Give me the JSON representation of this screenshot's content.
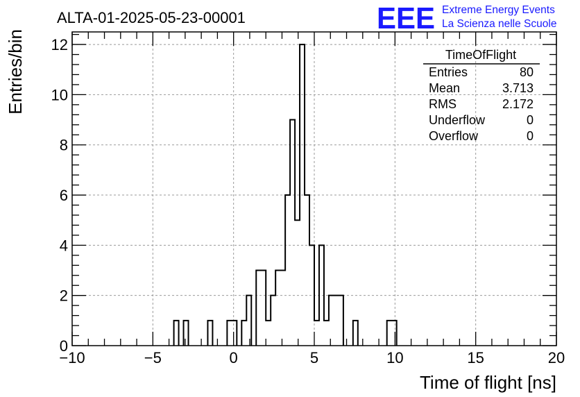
{
  "chart_data": {
    "type": "histogram",
    "title": "ALTA-01-2025-05-23-00001",
    "xlabel": "Time of flight [ns]",
    "ylabel": "Entries/bin",
    "xlim": [
      -10,
      20
    ],
    "ylim": [
      0,
      12.5
    ],
    "bin_width": 0.3,
    "grid": true,
    "x_ticks": [
      -10,
      -5,
      0,
      5,
      10,
      15,
      20
    ],
    "x_tick_labels": [
      "−10",
      "−5",
      "0",
      "5",
      "10",
      "15",
      "20"
    ],
    "y_ticks": [
      0,
      2,
      4,
      6,
      8,
      10,
      12
    ],
    "y_tick_labels": [
      "0",
      "2",
      "4",
      "6",
      "8",
      "10",
      "12"
    ],
    "bins": [
      {
        "low": -3.7,
        "count": 1
      },
      {
        "low": -3.1,
        "count": 1
      },
      {
        "low": -1.6,
        "count": 1
      },
      {
        "low": -0.4,
        "count": 1
      },
      {
        "low": -0.1,
        "count": 1
      },
      {
        "low": 0.5,
        "count": 1
      },
      {
        "low": 0.8,
        "count": 2
      },
      {
        "low": 1.4,
        "count": 3
      },
      {
        "low": 1.7,
        "count": 3
      },
      {
        "low": 2.0,
        "count": 1
      },
      {
        "low": 2.3,
        "count": 2
      },
      {
        "low": 2.6,
        "count": 3
      },
      {
        "low": 2.9,
        "count": 3
      },
      {
        "low": 3.2,
        "count": 6
      },
      {
        "low": 3.5,
        "count": 9
      },
      {
        "low": 3.8,
        "count": 5
      },
      {
        "low": 4.1,
        "count": 12
      },
      {
        "low": 4.4,
        "count": 6
      },
      {
        "low": 4.7,
        "count": 4
      },
      {
        "low": 5.0,
        "count": 1
      },
      {
        "low": 5.3,
        "count": 4
      },
      {
        "low": 5.6,
        "count": 1
      },
      {
        "low": 5.9,
        "count": 2
      },
      {
        "low": 6.2,
        "count": 2
      },
      {
        "low": 6.5,
        "count": 2
      },
      {
        "low": 7.4,
        "count": 1
      },
      {
        "low": 9.5,
        "count": 1
      },
      {
        "low": 9.8,
        "count": 1
      }
    ],
    "stats_box": {
      "title": "TimeOfFlight",
      "placement": "top-right",
      "rows": [
        {
          "label": "Entries",
          "value": "80"
        },
        {
          "label": "Mean",
          "value": "3.713"
        },
        {
          "label": "RMS",
          "value": "2.172"
        },
        {
          "label": "Underflow",
          "value": "0"
        },
        {
          "label": "Overflow",
          "value": "0"
        }
      ]
    }
  },
  "logo": {
    "mark": "EEE",
    "line1": "Extreme Energy Events",
    "line2": "La Scienza nelle Scuole",
    "color": "#1a1aff"
  }
}
